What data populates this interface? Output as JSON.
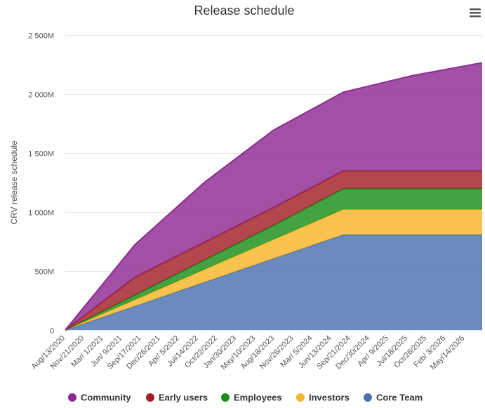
{
  "chart_data": {
    "type": "area",
    "stacked": true,
    "title": "Release schedule",
    "xlabel": "",
    "ylabel": "CRV release schedule",
    "ylim": [
      0,
      2500
    ],
    "y_tick_labels": [
      "0",
      "500M",
      "1 000M",
      "1 500M",
      "2 000M",
      "2 500M"
    ],
    "y_tick_values": [
      0,
      500,
      1000,
      1500,
      2000,
      2500
    ],
    "x_start": "2020-08-13",
    "x_end": "2026-08-13",
    "x_tick_labels": [
      "Aug/13/2020",
      "Nov/21/2020",
      "Mar/ 1/2021",
      "Jun/ 9/2021",
      "Sep/17/2021",
      "Dec/26/2021",
      "Apr/ 5/2022",
      "Jul/14/2022",
      "Oct/22/2022",
      "Jan/30/2023",
      "May/10/2023",
      "Aug/18/2023",
      "Nov/26/2023",
      "Mar/ 5/2024",
      "Jun/13/2024",
      "Sep/21/2024",
      "Dec/30/2024",
      "Apr/ 9/2025",
      "Jul/18/2025",
      "Oct/26/2025",
      "Feb/ 3/2026",
      "May/14/2026"
    ],
    "x_tick_dates": [
      "2020-08-13",
      "2020-11-21",
      "2021-03-01",
      "2021-06-09",
      "2021-09-17",
      "2021-12-26",
      "2022-04-05",
      "2022-07-14",
      "2022-10-22",
      "2023-01-30",
      "2023-05-10",
      "2023-08-18",
      "2023-11-26",
      "2024-03-05",
      "2024-06-13",
      "2024-09-21",
      "2024-12-30",
      "2025-04-09",
      "2025-07-18",
      "2025-10-26",
      "2026-02-03",
      "2026-05-14"
    ],
    "x": [
      "2020-08-13",
      "2021-08-13",
      "2022-08-13",
      "2023-08-13",
      "2024-08-13",
      "2025-08-13",
      "2026-08-13"
    ],
    "series": [
      {
        "name": "Core Team",
        "color": "#4a72b0",
        "values": [
          0,
          202,
          404,
          606,
          808,
          808,
          808
        ]
      },
      {
        "name": "Investors",
        "color": "#f9b62a",
        "values": [
          0,
          54,
          108,
          162,
          214,
          214,
          214
        ]
      },
      {
        "name": "Employees",
        "color": "#1a8f1a",
        "values": [
          0,
          40,
          80,
          120,
          176,
          176,
          176
        ]
      },
      {
        "name": "Early users",
        "color": "#a12026",
        "values": [
          0,
          151,
          151,
          151,
          151,
          151,
          151
        ]
      },
      {
        "name": "Community",
        "color": "#8e2a91",
        "values": [
          0,
          275,
          507,
          656,
          667,
          808,
          917
        ]
      }
    ],
    "legend": [
      "Community",
      "Early users",
      "Employees",
      "Investors",
      "Core Team"
    ],
    "legend_position": "bottom"
  },
  "menu_icon": "hamburger-icon"
}
